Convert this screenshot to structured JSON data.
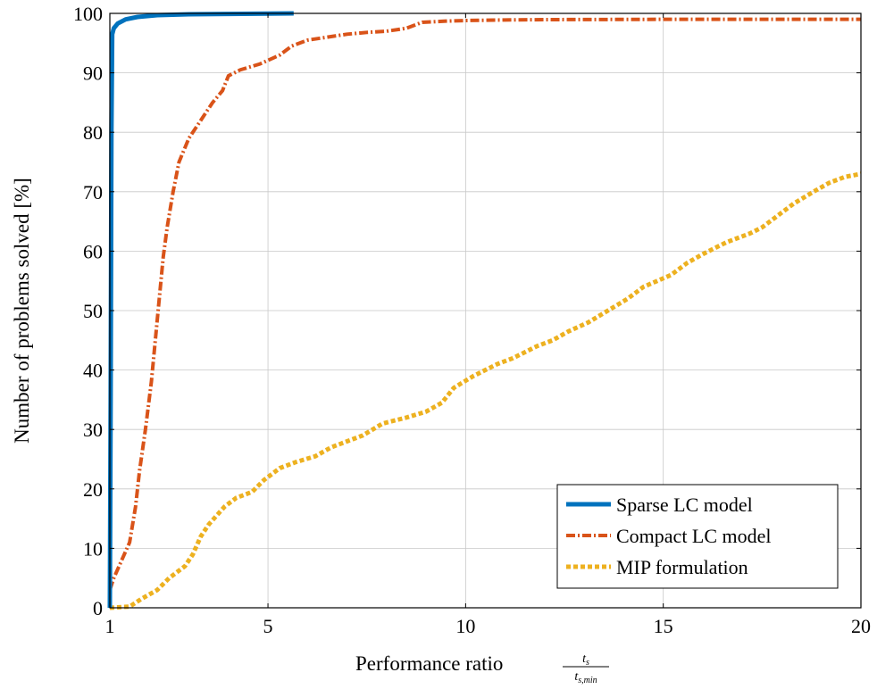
{
  "chart_data": {
    "type": "line",
    "xlabel": "Performance ratio",
    "xlabel_fraction": {
      "numerator": "t",
      "numerator_sub": "s",
      "denominator": "t",
      "denominator_sub": "s,min"
    },
    "ylabel": "Number of problems solved [%]",
    "xlim": [
      1,
      20
    ],
    "ylim": [
      0,
      100
    ],
    "xticks": [
      1,
      5,
      10,
      15,
      20
    ],
    "yticks": [
      0,
      10,
      20,
      30,
      40,
      50,
      60,
      70,
      80,
      90,
      100
    ],
    "grid": true,
    "legend_position": "bottom-right",
    "series": [
      {
        "name": "Sparse LC model",
        "color": "#0072BD",
        "style": "solid",
        "points": [
          [
            1.0,
            0
          ],
          [
            1.02,
            35
          ],
          [
            1.04,
            80
          ],
          [
            1.06,
            96.5
          ],
          [
            1.1,
            97.5
          ],
          [
            1.2,
            98.3
          ],
          [
            1.4,
            99.0
          ],
          [
            1.7,
            99.4
          ],
          [
            2.2,
            99.7
          ],
          [
            3.0,
            99.85
          ],
          [
            4.0,
            99.9
          ],
          [
            5.65,
            100
          ]
        ]
      },
      {
        "name": "Compact LC model",
        "color": "#D95319",
        "style": "dashdot",
        "points": [
          [
            1.0,
            3
          ],
          [
            1.1,
            5
          ],
          [
            1.3,
            8
          ],
          [
            1.5,
            11
          ],
          [
            1.65,
            17
          ],
          [
            1.75,
            23
          ],
          [
            1.9,
            30
          ],
          [
            2.05,
            38
          ],
          [
            2.15,
            45
          ],
          [
            2.25,
            52
          ],
          [
            2.35,
            59
          ],
          [
            2.45,
            64
          ],
          [
            2.6,
            70
          ],
          [
            2.75,
            75
          ],
          [
            3.0,
            79
          ],
          [
            3.3,
            82
          ],
          [
            3.6,
            85
          ],
          [
            3.85,
            87
          ],
          [
            4.0,
            89.5
          ],
          [
            4.3,
            90.5
          ],
          [
            4.8,
            91.5
          ],
          [
            5.3,
            93
          ],
          [
            5.6,
            94.5
          ],
          [
            6.0,
            95.5
          ],
          [
            6.5,
            96
          ],
          [
            7.0,
            96.5
          ],
          [
            7.5,
            96.8
          ],
          [
            8.0,
            97
          ],
          [
            8.5,
            97.5
          ],
          [
            8.9,
            98.5
          ],
          [
            9.5,
            98.7
          ],
          [
            10.0,
            98.8
          ],
          [
            11.0,
            98.9
          ],
          [
            12.0,
            98.95
          ],
          [
            15.0,
            99
          ],
          [
            20.0,
            99
          ]
        ]
      },
      {
        "name": "MIP formulation",
        "color": "#EDB120",
        "style": "dotted",
        "points": [
          [
            1.0,
            0
          ],
          [
            1.5,
            0.2
          ],
          [
            1.8,
            1.5
          ],
          [
            2.2,
            3
          ],
          [
            2.5,
            5
          ],
          [
            2.9,
            7
          ],
          [
            3.1,
            9
          ],
          [
            3.3,
            12
          ],
          [
            3.5,
            14
          ],
          [
            3.9,
            17
          ],
          [
            4.2,
            18.5
          ],
          [
            4.6,
            19.5
          ],
          [
            4.9,
            21.5
          ],
          [
            5.3,
            23.5
          ],
          [
            5.7,
            24.5
          ],
          [
            6.2,
            25.5
          ],
          [
            6.6,
            27
          ],
          [
            7.0,
            28
          ],
          [
            7.4,
            29
          ],
          [
            7.9,
            31
          ],
          [
            8.5,
            32
          ],
          [
            9.0,
            33
          ],
          [
            9.4,
            34.5
          ],
          [
            9.7,
            37
          ],
          [
            10.2,
            39
          ],
          [
            10.8,
            41
          ],
          [
            11.2,
            42
          ],
          [
            11.8,
            44
          ],
          [
            12.2,
            45
          ],
          [
            12.6,
            46.5
          ],
          [
            13.1,
            48
          ],
          [
            13.6,
            50
          ],
          [
            14.1,
            52
          ],
          [
            14.5,
            54
          ],
          [
            15.2,
            56
          ],
          [
            15.6,
            58
          ],
          [
            16.0,
            59.5
          ],
          [
            16.6,
            61.5
          ],
          [
            17.2,
            63
          ],
          [
            17.5,
            64
          ],
          [
            17.9,
            66
          ],
          [
            18.3,
            68
          ],
          [
            18.8,
            70
          ],
          [
            19.2,
            71.5
          ],
          [
            19.6,
            72.5
          ],
          [
            20.0,
            73
          ]
        ]
      }
    ]
  }
}
